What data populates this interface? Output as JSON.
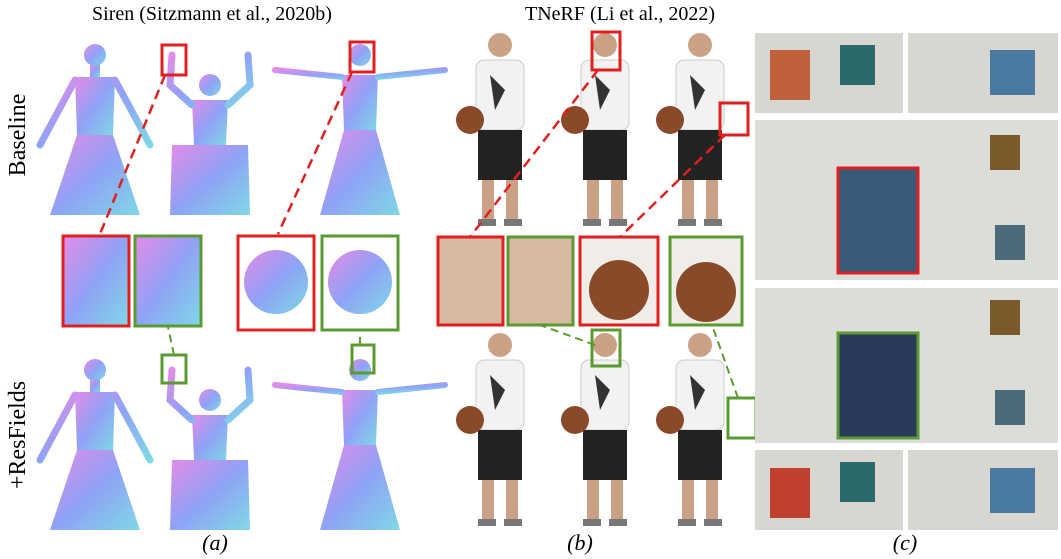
{
  "panel_a": {
    "title": "Siren (Sitzmann et al., 2020b)",
    "row_labels": [
      "Baseline",
      "+ResFields"
    ],
    "caption": "(a)"
  },
  "panel_b": {
    "title": "TNeRF (Li et al., 2022)",
    "caption": "(b)"
  },
  "panel_c": {
    "caption": "(c)"
  }
}
